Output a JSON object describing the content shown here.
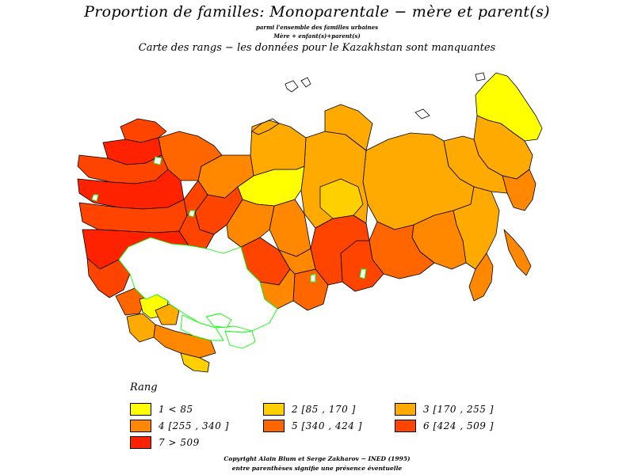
{
  "title": "Proportion de familles: Monoparentale  −  mère et parent(s)",
  "subtitle_line1": "parmi l'ensemble des familles urbaines",
  "subtitle_line2": "Mère + enfant(s)+parent(s)",
  "subtitle": "Carte des  rangs  −  les données pour le Kazakhstan sont manquantes",
  "colors": {
    "rank1": "#ffff00",
    "rank2": "#ffd000",
    "rank3": "#ffaa00",
    "rank4": "#ff8800",
    "rank5": "#ff6600",
    "rank6": "#ff4400",
    "rank7": "#ff2200",
    "missing": "#ffffff",
    "region_border": "#000000",
    "missing_border": "#00ff00"
  },
  "legend": {
    "title": "Rang",
    "items": [
      {
        "label": "1  <  85",
        "color": "#ffff00"
      },
      {
        "label": "2  [85  ,  170  ]",
        "color": "#ffd000"
      },
      {
        "label": "3  [170  ,  255  ]",
        "color": "#ffaa00"
      },
      {
        "label": "4  [255  ,  340  ]",
        "color": "#ff8800"
      },
      {
        "label": "5  [340  ,  424  ]",
        "color": "#ff6600"
      },
      {
        "label": "6  [424  ,  509  ]",
        "color": "#ff4400"
      },
      {
        "label": "7  >  509",
        "color": "#ff2200"
      }
    ]
  },
  "footer_line1": "Copyright  Alain  Blum  et  Serge  Zakharov  −  INED  (1995)",
  "footer_line2": "entre parenthèses signifie une présence éventuelle"
}
